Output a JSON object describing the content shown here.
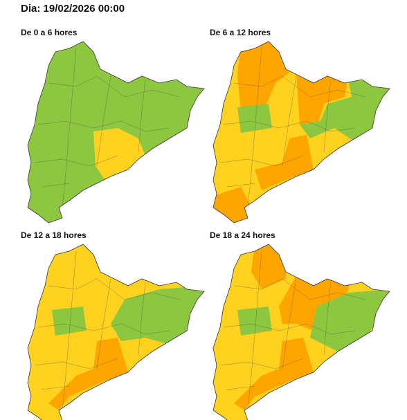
{
  "header": {
    "title": "Dia: 19/02/2026 00:00"
  },
  "panels": [
    {
      "title": "De 0 a 6 hores"
    },
    {
      "title": "De 6 a 12 hores"
    },
    {
      "title": "De 12 a 18 hores"
    },
    {
      "title": "De 18 a 24 hores"
    }
  ]
}
